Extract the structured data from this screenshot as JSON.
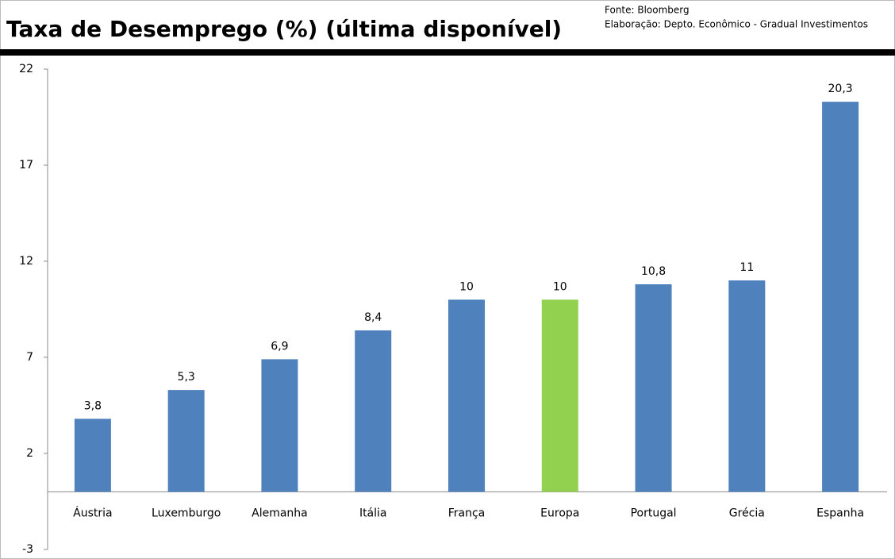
{
  "chart_data": {
    "type": "bar",
    "title": "Taxa de Desemprego (%) (última disponível)",
    "source": [
      "Fonte: Bloomberg",
      "Elaboração: Depto. Econômico - Gradual Investimentos"
    ],
    "categories": [
      "Áustria",
      "Luxemburgo",
      "Alemanha",
      "Itália",
      "França",
      "Europa",
      "Portugal",
      "Grécia",
      "Espanha"
    ],
    "values": [
      3.8,
      5.3,
      6.9,
      8.4,
      10,
      10,
      10.8,
      11,
      20.3
    ],
    "value_labels": [
      "3,8",
      "5,3",
      "6,9",
      "8,4",
      "10",
      "10",
      "10,8",
      "11",
      "20,3"
    ],
    "colors": [
      "#4f81bd",
      "#4f81bd",
      "#4f81bd",
      "#4f81bd",
      "#4f81bd",
      "#92d050",
      "#4f81bd",
      "#4f81bd",
      "#4f81bd"
    ],
    "ylim": [
      -3,
      22
    ],
    "yticks": [
      -3,
      2,
      7,
      12,
      17,
      22
    ],
    "grid": false
  }
}
